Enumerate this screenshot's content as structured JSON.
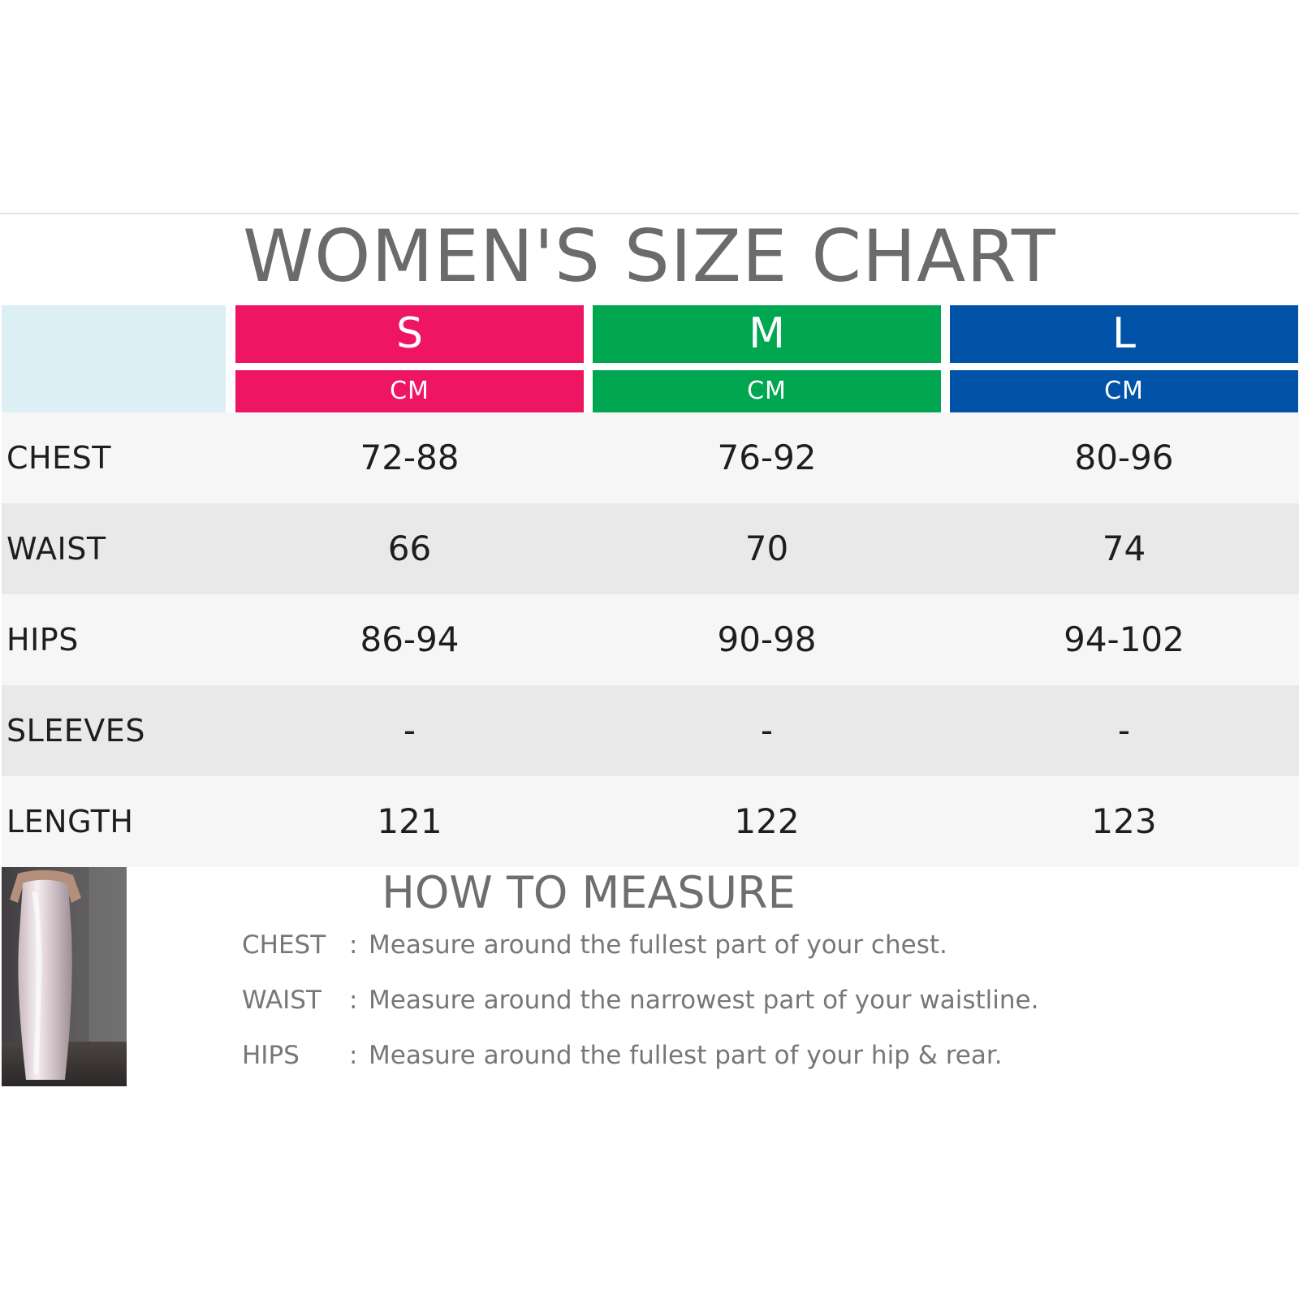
{
  "title": "WOMEN'S SIZE CHART",
  "sizes": [
    {
      "letter": "S",
      "unit": "CM",
      "color": "#ee1562"
    },
    {
      "letter": "M",
      "unit": "CM",
      "color": "#00a650"
    },
    {
      "letter": "L",
      "unit": "CM",
      "color": "#0053a6"
    }
  ],
  "corner_color": "#dceff5",
  "rows": [
    {
      "label": "CHEST",
      "values": [
        "72-88",
        "76-92",
        "80-96"
      ]
    },
    {
      "label": "WAIST",
      "values": [
        "66",
        "70",
        "74"
      ]
    },
    {
      "label": "HIPS",
      "values": [
        "86-94",
        "90-98",
        "94-102"
      ]
    },
    {
      "label": "SLEEVES",
      "values": [
        "-",
        "-",
        "-"
      ]
    },
    {
      "label": "LENGTH",
      "values": [
        "121",
        "122",
        "123"
      ]
    }
  ],
  "how_to_measure": {
    "title": "HOW TO MEASURE",
    "chest": {
      "label": "CHEST",
      "colon": ":",
      "text": "Measure around the fullest part of your chest."
    },
    "waist": {
      "label": "WAIST",
      "colon": ":",
      "text": "Measure around the narrowest part of your waistline."
    },
    "hips": {
      "label": "HIPS",
      "colon": ":",
      "text": "Measure around the fullest part of your hip & rear."
    }
  }
}
